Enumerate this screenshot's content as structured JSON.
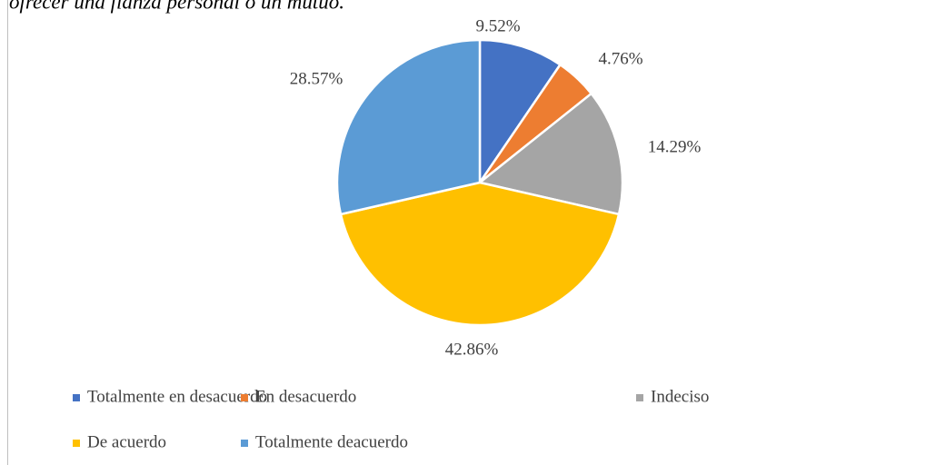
{
  "chart_data": {
    "type": "pie",
    "title": "ofrecer una fianza personal o un mutuo.",
    "categories": [
      "Totalmente en desacuerdo",
      "En desacuerdo",
      "Indeciso",
      "De acuerdo",
      "Totalmente deacuerdo"
    ],
    "values": [
      9.52,
      4.76,
      14.29,
      42.86,
      28.57
    ],
    "value_labels": [
      "9.52%",
      "4.76%",
      "14.29%",
      "42.86%",
      "28.57%"
    ],
    "colors": [
      "#4472c4",
      "#ed7d31",
      "#a5a5a5",
      "#ffc000",
      "#5b9bd5"
    ],
    "legend": "bottom"
  }
}
